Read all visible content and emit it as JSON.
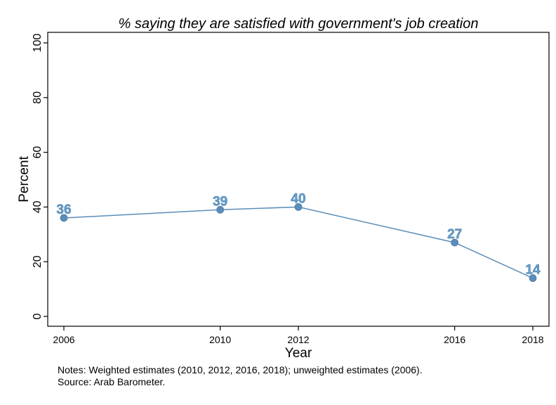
{
  "chart_data": {
    "type": "line",
    "title": "% saying they are satisfied with government's job creation",
    "xlabel": "Year",
    "ylabel": "Percent",
    "x": [
      2006,
      2010,
      2012,
      2016,
      2018
    ],
    "series": [
      {
        "values": [
          36,
          39,
          40,
          27,
          14
        ],
        "data_labels": [
          "36",
          "39",
          "40",
          "27",
          "14"
        ]
      }
    ],
    "xlim": [
      2006,
      2018
    ],
    "ylim": [
      0,
      100
    ],
    "x_ticks": [
      "2006",
      "2010",
      "2012",
      "2016",
      "2018"
    ],
    "y_ticks": [
      "0",
      "20",
      "40",
      "60",
      "80",
      "100"
    ],
    "grid": false,
    "legend": "none",
    "line_color": "#5b8db8",
    "marker_color": "#5b8db8",
    "label_color": "#6a9ec6"
  },
  "notes": [
    "Notes: Weighted estimates (2010, 2012, 2016, 2018); unweighted estimates (2006).",
    "Source: Arab Barometer."
  ]
}
